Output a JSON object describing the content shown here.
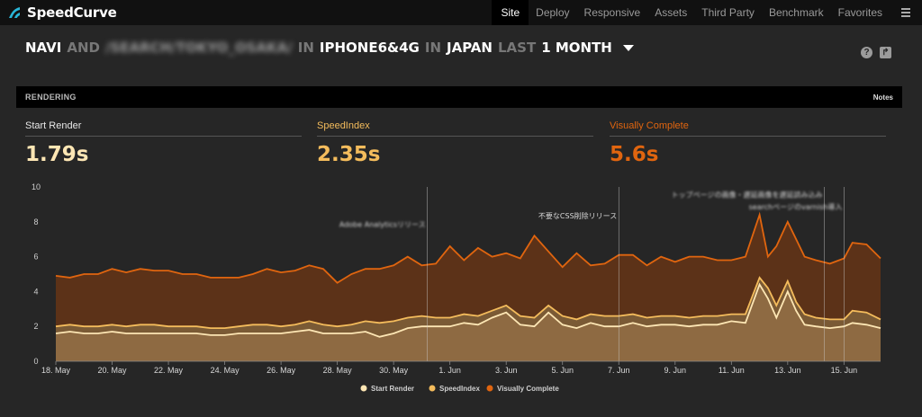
{
  "app": {
    "name": "SpeedCurve"
  },
  "nav": {
    "items": [
      "Site",
      "Deploy",
      "Responsive",
      "Assets",
      "Third Party",
      "Benchmark",
      "Favorites"
    ],
    "active": "Site"
  },
  "header": {
    "sites": "NAVI",
    "and": "AND",
    "path": "/SEARCH/TOKYO_OSAKA/",
    "in1": "IN",
    "device": "IPHONE6&4G",
    "in2": "IN",
    "region": "JAPAN",
    "last": "LAST",
    "period": "1 MONTH"
  },
  "section": {
    "title": "RENDERING",
    "notes_label": "Notes"
  },
  "metrics": [
    {
      "label": "Start Render",
      "value": "1.79s",
      "color": "#fde6b4"
    },
    {
      "label": "SpeedIndex",
      "value": "2.35s",
      "color": "#f4bc5c"
    },
    {
      "label": "Visually Complete",
      "value": "5.6s",
      "color": "#e0650f"
    }
  ],
  "chart_data": {
    "type": "area",
    "ylim": [
      0,
      10
    ],
    "yticks": [
      0,
      2,
      4,
      6,
      8,
      10
    ],
    "xlim": [
      0,
      29.3
    ],
    "x_tick_labels": [
      {
        "x": 0,
        "label": "18. May"
      },
      {
        "x": 2,
        "label": "20. May"
      },
      {
        "x": 4,
        "label": "22. May"
      },
      {
        "x": 6,
        "label": "24. May"
      },
      {
        "x": 8,
        "label": "26. May"
      },
      {
        "x": 10,
        "label": "28. May"
      },
      {
        "x": 12,
        "label": "30. May"
      },
      {
        "x": 14,
        "label": "1. Jun"
      },
      {
        "x": 16,
        "label": "3. Jun"
      },
      {
        "x": 18,
        "label": "5. Jun"
      },
      {
        "x": 20,
        "label": "7. Jun"
      },
      {
        "x": 22,
        "label": "9. Jun"
      },
      {
        "x": 24,
        "label": "11. Jun"
      },
      {
        "x": 26,
        "label": "13. Jun"
      },
      {
        "x": 28,
        "label": "15. Jun"
      }
    ],
    "series": [
      {
        "name": "Visually Complete",
        "color": "#e0650f",
        "points": [
          [
            0,
            4.9
          ],
          [
            0.5,
            4.8
          ],
          [
            1,
            5.0
          ],
          [
            1.5,
            5.0
          ],
          [
            2,
            5.3
          ],
          [
            2.5,
            5.1
          ],
          [
            3,
            5.3
          ],
          [
            3.5,
            5.2
          ],
          [
            4,
            5.2
          ],
          [
            4.5,
            5.0
          ],
          [
            5,
            5.0
          ],
          [
            5.5,
            4.8
          ],
          [
            6,
            4.8
          ],
          [
            6.5,
            4.8
          ],
          [
            7,
            5.0
          ],
          [
            7.5,
            5.3
          ],
          [
            8,
            5.1
          ],
          [
            8.5,
            5.2
          ],
          [
            9,
            5.5
          ],
          [
            9.5,
            5.3
          ],
          [
            10,
            4.5
          ],
          [
            10.5,
            5.0
          ],
          [
            11,
            5.3
          ],
          [
            11.5,
            5.3
          ],
          [
            12,
            5.5
          ],
          [
            12.5,
            6.0
          ],
          [
            13,
            5.5
          ],
          [
            13.5,
            5.6
          ],
          [
            14,
            6.6
          ],
          [
            14.5,
            5.8
          ],
          [
            15,
            6.5
          ],
          [
            15.5,
            6.0
          ],
          [
            16,
            6.2
          ],
          [
            16.5,
            5.9
          ],
          [
            17,
            7.2
          ],
          [
            17.5,
            6.3
          ],
          [
            18,
            5.4
          ],
          [
            18.5,
            6.2
          ],
          [
            19,
            5.5
          ],
          [
            19.5,
            5.6
          ],
          [
            20,
            6.1
          ],
          [
            20.5,
            6.1
          ],
          [
            21,
            5.5
          ],
          [
            21.5,
            6.0
          ],
          [
            22,
            5.7
          ],
          [
            22.5,
            6.0
          ],
          [
            23,
            6.0
          ],
          [
            23.5,
            5.8
          ],
          [
            24,
            5.8
          ],
          [
            24.5,
            6.0
          ],
          [
            25,
            8.4
          ],
          [
            25.3,
            6.0
          ],
          [
            25.6,
            6.6
          ],
          [
            26,
            8.0
          ],
          [
            26.3,
            7.0
          ],
          [
            26.6,
            6.0
          ],
          [
            27,
            5.8
          ],
          [
            27.5,
            5.6
          ],
          [
            28,
            5.9
          ],
          [
            28.3,
            6.8
          ],
          [
            28.8,
            6.7
          ],
          [
            29.3,
            5.9
          ]
        ]
      },
      {
        "name": "SpeedIndex",
        "color": "#f4bc5c",
        "points": [
          [
            0,
            2.0
          ],
          [
            0.5,
            2.1
          ],
          [
            1,
            2.0
          ],
          [
            1.5,
            2.0
          ],
          [
            2,
            2.1
          ],
          [
            2.5,
            2.0
          ],
          [
            3,
            2.1
          ],
          [
            3.5,
            2.1
          ],
          [
            4,
            2.0
          ],
          [
            4.5,
            2.0
          ],
          [
            5,
            2.0
          ],
          [
            5.5,
            1.9
          ],
          [
            6,
            1.9
          ],
          [
            6.5,
            2.0
          ],
          [
            7,
            2.1
          ],
          [
            7.5,
            2.1
          ],
          [
            8,
            2.0
          ],
          [
            8.5,
            2.1
          ],
          [
            9,
            2.3
          ],
          [
            9.5,
            2.1
          ],
          [
            10,
            2.0
          ],
          [
            10.5,
            2.1
          ],
          [
            11,
            2.3
          ],
          [
            11.5,
            2.2
          ],
          [
            12,
            2.3
          ],
          [
            12.5,
            2.5
          ],
          [
            13,
            2.6
          ],
          [
            13.5,
            2.5
          ],
          [
            14,
            2.5
          ],
          [
            14.5,
            2.7
          ],
          [
            15,
            2.6
          ],
          [
            15.5,
            2.9
          ],
          [
            16,
            3.2
          ],
          [
            16.5,
            2.6
          ],
          [
            17,
            2.5
          ],
          [
            17.5,
            3.2
          ],
          [
            18,
            2.6
          ],
          [
            18.5,
            2.4
          ],
          [
            19,
            2.7
          ],
          [
            19.5,
            2.6
          ],
          [
            20,
            2.6
          ],
          [
            20.5,
            2.7
          ],
          [
            21,
            2.5
          ],
          [
            21.5,
            2.6
          ],
          [
            22,
            2.6
          ],
          [
            22.5,
            2.5
          ],
          [
            23,
            2.6
          ],
          [
            23.5,
            2.6
          ],
          [
            24,
            2.7
          ],
          [
            24.5,
            2.7
          ],
          [
            25,
            4.8
          ],
          [
            25.3,
            4.2
          ],
          [
            25.6,
            3.2
          ],
          [
            26,
            4.6
          ],
          [
            26.3,
            3.4
          ],
          [
            26.6,
            2.7
          ],
          [
            27,
            2.5
          ],
          [
            27.5,
            2.4
          ],
          [
            28,
            2.4
          ],
          [
            28.3,
            2.9
          ],
          [
            28.8,
            2.8
          ],
          [
            29.3,
            2.4
          ]
        ]
      },
      {
        "name": "Start Render",
        "color": "#fde6b4",
        "points": [
          [
            0,
            1.6
          ],
          [
            0.5,
            1.7
          ],
          [
            1,
            1.6
          ],
          [
            1.5,
            1.6
          ],
          [
            2,
            1.7
          ],
          [
            2.5,
            1.6
          ],
          [
            3,
            1.6
          ],
          [
            3.5,
            1.6
          ],
          [
            4,
            1.6
          ],
          [
            4.5,
            1.6
          ],
          [
            5,
            1.6
          ],
          [
            5.5,
            1.5
          ],
          [
            6,
            1.5
          ],
          [
            6.5,
            1.6
          ],
          [
            7,
            1.6
          ],
          [
            7.5,
            1.6
          ],
          [
            8,
            1.6
          ],
          [
            8.5,
            1.7
          ],
          [
            9,
            1.8
          ],
          [
            9.5,
            1.6
          ],
          [
            10,
            1.6
          ],
          [
            10.5,
            1.6
          ],
          [
            11,
            1.7
          ],
          [
            11.5,
            1.4
          ],
          [
            12,
            1.6
          ],
          [
            12.5,
            1.9
          ],
          [
            13,
            2.0
          ],
          [
            13.5,
            2.0
          ],
          [
            14,
            2.0
          ],
          [
            14.5,
            2.2
          ],
          [
            15,
            2.1
          ],
          [
            15.5,
            2.5
          ],
          [
            16,
            2.8
          ],
          [
            16.5,
            2.1
          ],
          [
            17,
            2.0
          ],
          [
            17.5,
            2.8
          ],
          [
            18,
            2.1
          ],
          [
            18.5,
            1.9
          ],
          [
            19,
            2.2
          ],
          [
            19.5,
            2.0
          ],
          [
            20,
            2.0
          ],
          [
            20.5,
            2.2
          ],
          [
            21,
            2.0
          ],
          [
            21.5,
            2.1
          ],
          [
            22,
            2.1
          ],
          [
            22.5,
            2.0
          ],
          [
            23,
            2.1
          ],
          [
            23.5,
            2.1
          ],
          [
            24,
            2.3
          ],
          [
            24.5,
            2.2
          ],
          [
            25,
            4.4
          ],
          [
            25.3,
            3.6
          ],
          [
            25.6,
            2.5
          ],
          [
            26,
            4.0
          ],
          [
            26.3,
            2.9
          ],
          [
            26.6,
            2.1
          ],
          [
            27,
            2.0
          ],
          [
            27.5,
            1.9
          ],
          [
            28,
            2.0
          ],
          [
            28.3,
            2.2
          ],
          [
            28.8,
            2.1
          ],
          [
            29.3,
            1.9
          ]
        ]
      }
    ],
    "annotations": [
      {
        "x": 13.2,
        "label": "Adobe Analyticsリリース",
        "label_y": 7.7,
        "blurred": true
      },
      {
        "x": 20.0,
        "label": "不要なCSS削除リリース",
        "label_y": 8.2,
        "blurred": false
      },
      {
        "x": 27.3,
        "label": "トップページの画像・遅延画像を遅延読み込み",
        "label_y": 9.4,
        "blurred": true
      },
      {
        "x": 28.0,
        "label": "searchページのvarnish導入",
        "label_y": 8.7,
        "blurred": true
      }
    ],
    "legend": {
      "position": "bottom-center",
      "items": [
        "Start Render",
        "SpeedIndex",
        "Visually Complete"
      ]
    },
    "grid": false
  }
}
